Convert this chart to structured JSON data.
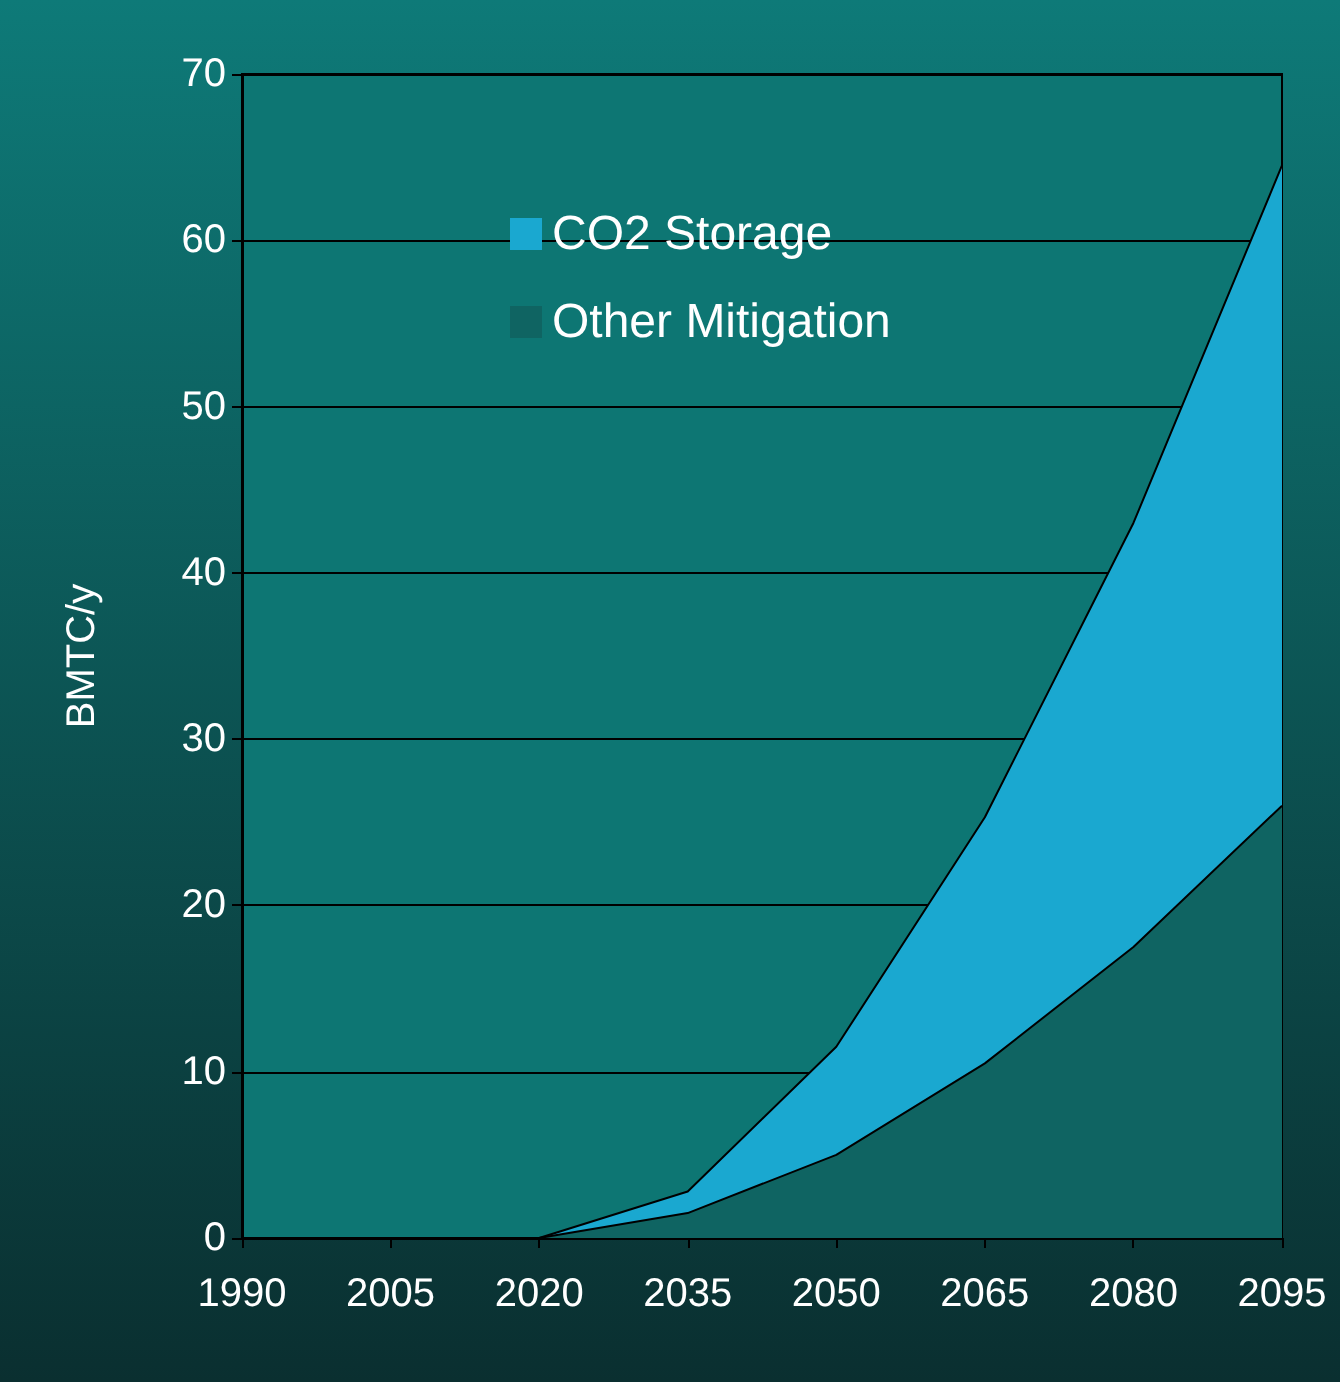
{
  "chart_data": {
    "type": "area",
    "stacked": true,
    "ylabel": "BMTC/y",
    "categories": [
      "1990",
      "2005",
      "2020",
      "2035",
      "2050",
      "2065",
      "2080",
      "2095"
    ],
    "series": [
      {
        "name": "Other Mitigation",
        "color": "#0f6462",
        "values": [
          0,
          0,
          0,
          1.5,
          5,
          10.5,
          17.5,
          26
        ]
      },
      {
        "name": "CO2 Storage",
        "color": "#1aa8d0",
        "values": [
          0,
          0,
          0,
          1.3,
          6.5,
          14.8,
          25.5,
          38.5
        ]
      }
    ],
    "ylim": [
      0,
      70
    ],
    "yticks": [
      0,
      10,
      20,
      30,
      40,
      50,
      60,
      70
    ],
    "grid": "y",
    "legend": "top"
  }
}
